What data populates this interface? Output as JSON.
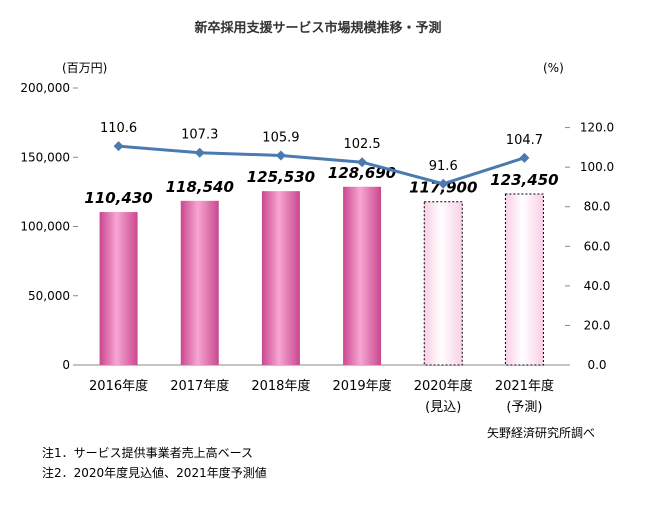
{
  "chart_data": {
    "type": "bar",
    "title": "新卒採用支援サービス市場規模推移・予測",
    "categories": [
      {
        "label": "2016年度",
        "sub": ""
      },
      {
        "label": "2017年度",
        "sub": ""
      },
      {
        "label": "2018年度",
        "sub": ""
      },
      {
        "label": "2019年度",
        "sub": ""
      },
      {
        "label": "2020年度",
        "sub": "(見込)"
      },
      {
        "label": "2021年度",
        "sub": "(予測)"
      }
    ],
    "series": [
      {
        "type": "bar",
        "axis": "left",
        "values": [
          110430,
          118540,
          125530,
          128690,
          117900,
          123450
        ],
        "value_labels": [
          "110,430",
          "118,540",
          "125,530",
          "128,690",
          "117,900",
          "123,450"
        ],
        "estimated": [
          false,
          false,
          false,
          false,
          true,
          true
        ],
        "color": "#e86fb0"
      },
      {
        "type": "line",
        "axis": "right",
        "values": [
          110.6,
          107.3,
          105.9,
          102.5,
          91.6,
          104.7
        ],
        "value_labels": [
          "110.6",
          "107.3",
          "105.9",
          "102.5",
          "91.6",
          "104.7"
        ],
        "color": "#4a7ab0"
      }
    ],
    "y_left": {
      "unit": "(百万円)",
      "range": [
        0,
        200000
      ],
      "ticks": [
        0,
        50000,
        100000,
        150000,
        200000
      ],
      "tick_labels": [
        "0",
        "50,000",
        "100,000",
        "150,000",
        "200,000"
      ]
    },
    "y_right": {
      "unit": "(%)",
      "range": [
        0,
        140
      ],
      "ticks": [
        0,
        20,
        40,
        60,
        80,
        100,
        120
      ],
      "tick_labels": [
        "0.0",
        "20.0",
        "40.0",
        "60.0",
        "80.0",
        "100.0",
        "120.0"
      ]
    },
    "grid": false,
    "source": "矢野経済研究所調べ",
    "notes": [
      "注1．サービス提供事業者売上高ベース",
      "注2．2020年度見込値、2021年度予測値"
    ]
  }
}
